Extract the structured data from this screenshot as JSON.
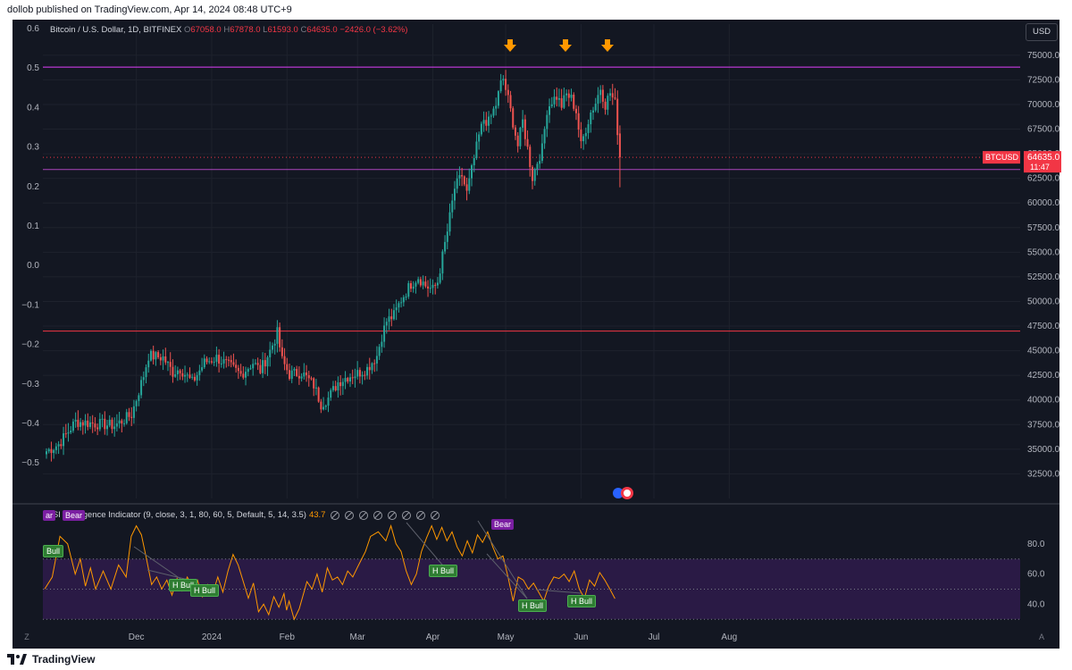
{
  "header": {
    "publisher_text": "dollob published on TradingView.com, Apr 14, 2024 08:48 UTC+9"
  },
  "footer": {
    "brand": "TradingView"
  },
  "legend": {
    "symbol": "Bitcoin / U.S. Dollar, 1D, BITFINEX",
    "o_label": "O",
    "o_value": "67058.0",
    "h_label": "H",
    "h_value": "67878.0",
    "l_label": "L",
    "l_value": "61593.0",
    "c_label": "C",
    "c_value": "64635.0",
    "change": "−2426.0 (−3.62%)"
  },
  "currency_button": "USD",
  "price_tag": {
    "symbol": "BTCUSD",
    "price": "64635.0",
    "countdown": "11:47"
  },
  "colors": {
    "up": "#26a69a",
    "down": "#ef5350",
    "bg": "#131722",
    "resistance": "#e040fb",
    "support_mid": "#ab47bc",
    "support_low": "#f23645",
    "rsi": "#ff9800",
    "arrow": "#ff9800"
  },
  "chart_data": [
    {
      "type": "candlestick",
      "title": "Bitcoin / U.S. Dollar, 1D, BITFINEX",
      "x_ticks": [
        "Dec",
        "2024",
        "Feb",
        "Mar",
        "Apr",
        "May",
        "Jun",
        "Jul",
        "Aug"
      ],
      "y_ticks": [
        "75000.0",
        "72500.0",
        "70000.0",
        "67500.0",
        "65000.0",
        "62500.0",
        "60000.0",
        "57500.0",
        "55000.0",
        "52500.0",
        "50000.0",
        "47500.0",
        "45000.0",
        "42500.0",
        "40000.0",
        "37500.0",
        "35000.0",
        "32500.0"
      ],
      "left_ticks": [
        "0.6",
        "0.5",
        "0.4",
        "0.3",
        "0.2",
        "0.1",
        "0.0",
        "−0.1",
        "−0.2",
        "−0.3",
        "−0.4",
        "−0.5"
      ],
      "ylim": [
        30000,
        76800
      ],
      "horizontal_lines": [
        73800,
        63400,
        47000
      ],
      "last_price": 64635,
      "annotations": [
        "down-arrow",
        "down-arrow",
        "down-arrow"
      ],
      "price_keypoints": [
        [
          0,
          34800
        ],
        [
          5,
          35500
        ],
        [
          12,
          37800
        ],
        [
          20,
          37600
        ],
        [
          28,
          37400
        ],
        [
          35,
          38500
        ],
        [
          40,
          42500
        ],
        [
          42,
          44500
        ],
        [
          48,
          44300
        ],
        [
          52,
          42800
        ],
        [
          55,
          43200
        ],
        [
          60,
          41800
        ],
        [
          65,
          43800
        ],
        [
          70,
          44300
        ],
        [
          75,
          43500
        ],
        [
          80,
          42600
        ],
        [
          85,
          43800
        ],
        [
          88,
          43000
        ],
        [
          92,
          45000
        ],
        [
          95,
          46800
        ],
        [
          97,
          44000
        ],
        [
          100,
          42600
        ],
        [
          105,
          42800
        ],
        [
          110,
          41500
        ],
        [
          113,
          39600
        ],
        [
          116,
          40200
        ],
        [
          120,
          41800
        ],
        [
          124,
          42400
        ],
        [
          128,
          42700
        ],
        [
          132,
          43200
        ],
        [
          136,
          44500
        ],
        [
          138,
          46500
        ],
        [
          140,
          48000
        ],
        [
          143,
          48600
        ],
        [
          146,
          50200
        ],
        [
          150,
          51800
        ],
        [
          153,
          52500
        ],
        [
          156,
          51600
        ],
        [
          159,
          51200
        ],
        [
          161,
          52000
        ],
        [
          163,
          54600
        ],
        [
          165,
          57100
        ],
        [
          168,
          61500
        ],
        [
          171,
          62800
        ],
        [
          173,
          61000
        ],
        [
          176,
          64500
        ],
        [
          178,
          66800
        ],
        [
          180,
          68500
        ],
        [
          182,
          68200
        ],
        [
          185,
          70000
        ],
        [
          187,
          72100
        ],
        [
          188,
          72600
        ],
        [
          190,
          70500
        ],
        [
          192,
          68200
        ],
        [
          194,
          65800
        ],
        [
          196,
          68300
        ],
        [
          198,
          65500
        ],
        [
          200,
          62600
        ],
        [
          202,
          64200
        ],
        [
          204,
          65500
        ],
        [
          206,
          69500
        ],
        [
          208,
          70400
        ],
        [
          210,
          70800
        ],
        [
          212,
          69900
        ],
        [
          214,
          71000
        ],
        [
          216,
          70600
        ],
        [
          218,
          69300
        ],
        [
          220,
          65800
        ],
        [
          222,
          67600
        ],
        [
          224,
          69200
        ],
        [
          226,
          70200
        ],
        [
          228,
          71700
        ],
        [
          230,
          70000
        ],
        [
          232,
          71200
        ],
        [
          234,
          70100
        ],
        [
          236,
          64635
        ]
      ],
      "last_candle": {
        "o": 67058,
        "h": 67878,
        "l": 61593,
        "c": 64635
      },
      "x_tick_days": [
        {
          "label": "Dec",
          "day": 37
        },
        {
          "label": "2024",
          "day": 68
        },
        {
          "label": "Feb",
          "day": 99
        },
        {
          "label": "Mar",
          "day": 128
        },
        {
          "label": "Apr",
          "day": 159
        },
        {
          "label": "May",
          "day": 189
        },
        {
          "label": "Jun",
          "day": 220
        },
        {
          "label": "Jul",
          "day": 250
        },
        {
          "label": "Aug",
          "day": 281
        }
      ]
    },
    {
      "type": "line",
      "title": "RSI Divergence Indicator (9, close, 3, 1, 80, 60, 5, Default, 5, 14, 3.5)",
      "series": [
        {
          "name": "RSI",
          "last_value": 43.7
        }
      ],
      "y_ticks": [
        "80.0",
        "60.0",
        "40.0"
      ],
      "ylim": [
        23,
        103
      ],
      "band": [
        30,
        70
      ],
      "mid_line": 50,
      "rsi_keypoints": [
        [
          0,
          50
        ],
        [
          3,
          58
        ],
        [
          6,
          85
        ],
        [
          9,
          80
        ],
        [
          12,
          60
        ],
        [
          14,
          70
        ],
        [
          16,
          52
        ],
        [
          18,
          64
        ],
        [
          20,
          50
        ],
        [
          23,
          62
        ],
        [
          26,
          50
        ],
        [
          29,
          66
        ],
        [
          32,
          58
        ],
        [
          34,
          85
        ],
        [
          36,
          92
        ],
        [
          38,
          86
        ],
        [
          40,
          70
        ],
        [
          42,
          53
        ],
        [
          44,
          58
        ],
        [
          46,
          50
        ],
        [
          48,
          56
        ],
        [
          50,
          46
        ],
        [
          52,
          57
        ],
        [
          54,
          49
        ],
        [
          56,
          58
        ],
        [
          58,
          52
        ],
        [
          60,
          56
        ],
        [
          62,
          45
        ],
        [
          64,
          53
        ],
        [
          66,
          47
        ],
        [
          68,
          58
        ],
        [
          70,
          48
        ],
        [
          72,
          62
        ],
        [
          74,
          73
        ],
        [
          76,
          66
        ],
        [
          78,
          55
        ],
        [
          80,
          44
        ],
        [
          82,
          54
        ],
        [
          84,
          35
        ],
        [
          86,
          40
        ],
        [
          88,
          33
        ],
        [
          90,
          45
        ],
        [
          92,
          38
        ],
        [
          94,
          47
        ],
        [
          95,
          36
        ],
        [
          96,
          42
        ],
        [
          98,
          30
        ],
        [
          100,
          37
        ],
        [
          103,
          55
        ],
        [
          105,
          50
        ],
        [
          107,
          60
        ],
        [
          109,
          48
        ],
        [
          111,
          64
        ],
        [
          113,
          56
        ],
        [
          115,
          58
        ],
        [
          117,
          53
        ],
        [
          119,
          62
        ],
        [
          121,
          58
        ],
        [
          123,
          65
        ],
        [
          126,
          75
        ],
        [
          128,
          85
        ],
        [
          131,
          88
        ],
        [
          134,
          82
        ],
        [
          136,
          92
        ],
        [
          138,
          80
        ],
        [
          140,
          75
        ],
        [
          142,
          62
        ],
        [
          144,
          53
        ],
        [
          146,
          60
        ],
        [
          148,
          75
        ],
        [
          150,
          84
        ],
        [
          152,
          92
        ],
        [
          154,
          83
        ],
        [
          156,
          91
        ],
        [
          158,
          82
        ],
        [
          160,
          88
        ],
        [
          162,
          78
        ],
        [
          164,
          72
        ],
        [
          166,
          82
        ],
        [
          168,
          74
        ],
        [
          170,
          86
        ],
        [
          172,
          81
        ],
        [
          174,
          88
        ],
        [
          176,
          78
        ],
        [
          178,
          70
        ],
        [
          180,
          72
        ],
        [
          182,
          58
        ],
        [
          184,
          42
        ],
        [
          186,
          58
        ],
        [
          188,
          56
        ],
        [
          190,
          50
        ],
        [
          192,
          54
        ],
        [
          194,
          48
        ],
        [
          196,
          42
        ],
        [
          198,
          52
        ],
        [
          200,
          58
        ],
        [
          202,
          57
        ],
        [
          204,
          60
        ],
        [
          206,
          55
        ],
        [
          208,
          62
        ],
        [
          210,
          50
        ],
        [
          212,
          44
        ],
        [
          214,
          56
        ],
        [
          216,
          52
        ],
        [
          218,
          61
        ],
        [
          220,
          56
        ],
        [
          222,
          50
        ],
        [
          224,
          43.7
        ]
      ],
      "labels": [
        "Bull",
        "Bear",
        "H Bull",
        "H Bull",
        "H Bull",
        "Bear",
        "H Bull",
        "H Bull"
      ]
    }
  ],
  "indicator_tags": {
    "bull1": "Bull",
    "bear1": "Bear",
    "hbull1": "H Bull",
    "hbull2": "H Bull",
    "hbull3": "H Bull",
    "bear2": "Bear",
    "hbull4": "H Bull",
    "hbull5": "H Bull",
    "bear0": "ar"
  },
  "indicator_legend": {
    "name": "RSI Divergence Indicator (9, close, 3, 1, 80, 60, 5, Default, 5, 14, 3.5)",
    "value": "43.7"
  }
}
